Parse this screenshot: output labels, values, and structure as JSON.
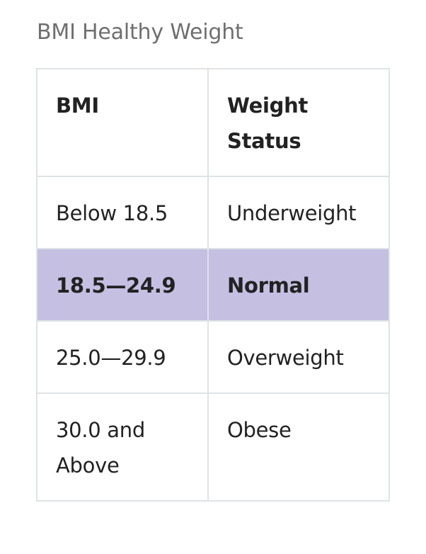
{
  "caption": "BMI Healthy Weight",
  "table": {
    "headers": [
      "BMI",
      "Weight Status"
    ],
    "rows": [
      {
        "bmi": "Below 18.5",
        "status": "Underweight",
        "highlighted": false
      },
      {
        "bmi": "18.5—24.9",
        "status": "Normal",
        "highlighted": true
      },
      {
        "bmi": "25.0—29.9",
        "status": "Overweight",
        "highlighted": false
      },
      {
        "bmi": "30.0 and Above",
        "status": "Obese",
        "highlighted": false
      }
    ]
  },
  "colors": {
    "highlight": "#c5bfe2",
    "border": "#dfe3e6",
    "caption": "#6f6f6f",
    "text": "#222222"
  }
}
